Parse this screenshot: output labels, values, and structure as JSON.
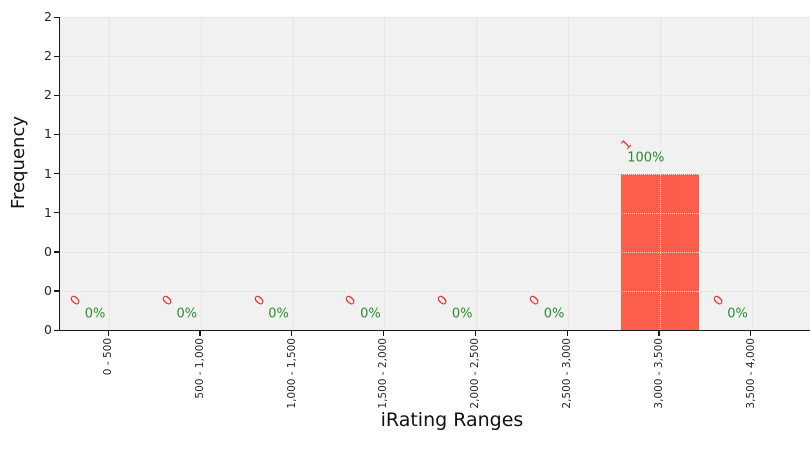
{
  "chart_data": {
    "type": "bar",
    "title": "",
    "xlabel": "iRating Ranges",
    "ylabel": "Frequency",
    "categories": [
      "0 - 500",
      "500 - 1,000",
      "1,000 - 1,500",
      "1,500 - 2,000",
      "2,000 - 2,500",
      "2,500 - 3,000",
      "3,000 - 3,500",
      "3,500 - 4,000"
    ],
    "values": [
      0,
      0,
      0,
      0,
      0,
      0,
      1,
      0
    ],
    "bar_value_labels": [
      "0",
      "0",
      "0",
      "0",
      "0",
      "0",
      "1",
      "0"
    ],
    "bar_percent_labels": [
      "0%",
      "0%",
      "0%",
      "0%",
      "0%",
      "0%",
      "100%",
      "0%"
    ],
    "ylim": [
      0,
      2
    ],
    "yticks": [
      {
        "value": 0,
        "label": "0"
      },
      {
        "value": 0.25,
        "label": "0"
      },
      {
        "value": 0.5,
        "label": "0"
      },
      {
        "value": 0.75,
        "label": "1"
      },
      {
        "value": 1,
        "label": "1"
      },
      {
        "value": 1.25,
        "label": "1"
      },
      {
        "value": 1.5,
        "label": "2"
      },
      {
        "value": 1.75,
        "label": "2"
      },
      {
        "value": 2,
        "label": "2"
      }
    ],
    "grid": {
      "style": "dotted",
      "axes": "both",
      "drawn_above_bars": true
    },
    "legend_position": "none",
    "colors": {
      "bar": "#FB5F4B",
      "value_label": "#E5312C",
      "percent_label": "#2B8C2B",
      "plot_background": "#F1F1F2",
      "figure_background": "#FFFFFF",
      "grid": "#DCDCDC",
      "axis_line": "#1A1A1A",
      "tick_label": "#262626"
    }
  }
}
